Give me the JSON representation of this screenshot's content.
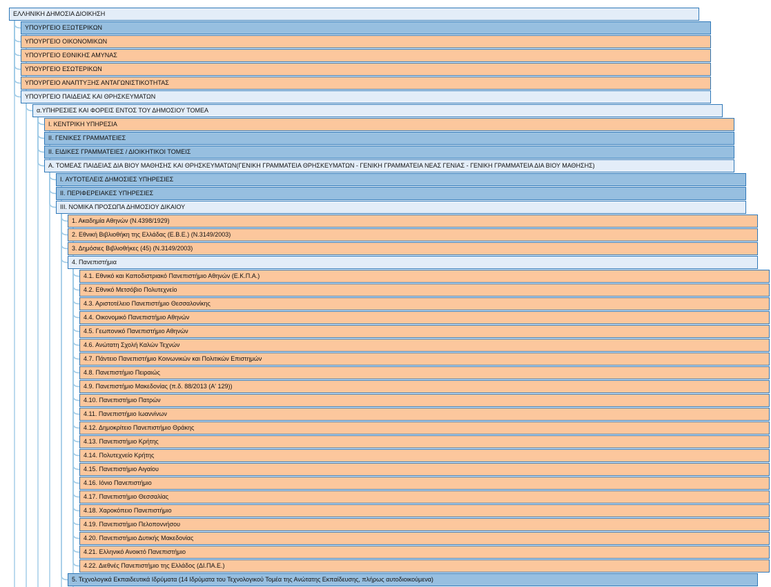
{
  "colors": {
    "light": "#e3edf8",
    "blue": "#97bfe0",
    "orange": "#fcc79d",
    "border": "#2f78b8",
    "connector": "#9ecae6"
  },
  "nodes": [
    {
      "text": "ΕΛΛΗΝΙΚΗ ΔΗΜΟΣΙΑ ΔΙΟΙΚΗΣΗ",
      "level": 0,
      "color": "light"
    },
    {
      "text": "ΥΠΟΥΡΓΕΙΟ ΕΞΩΤΕΡΙΚΩΝ",
      "level": 1,
      "color": "blue"
    },
    {
      "text": "ΥΠΟΥΡΓΕΙΟ ΟΙΚΟΝΟΜΙΚΩΝ",
      "level": 1,
      "color": "orange"
    },
    {
      "text": "ΥΠΟΥΡΓΕΙΟ ΕΘΝΙΚΗΣ ΑΜΥΝΑΣ",
      "level": 1,
      "color": "orange"
    },
    {
      "text": "ΥΠΟΥΡΓΕΙΟ ΕΣΩΤΕΡΙΚΩΝ",
      "level": 1,
      "color": "orange"
    },
    {
      "text": "ΥΠΟΥΡΓΕΙΟ ΑΝΑΠΤΥΞΗΣ ΑΝΤΑΓΩΝΙΣΤΙΚΟΤΗΤΑΣ",
      "level": 1,
      "color": "orange"
    },
    {
      "text": "ΥΠΟΥΡΓΕΙΟ ΠΑΙΔΕΙΑΣ ΚΑΙ ΘΡΗΣΚΕΥΜΑΤΩΝ",
      "level": 1,
      "color": "light"
    },
    {
      "text": "α.ΥΠΗΡΕΣΙΕΣ ΚΑΙ ΦΟΡΕΙΣ ΕΝΤΟΣ ΤΟΥ ΔΗΜΟΣΙΟΥ ΤΟΜΕΑ",
      "level": 2,
      "color": "light"
    },
    {
      "text": "I. ΚΕΝΤΡΙΚΗ ΥΠΗΡΕΣΙΑ",
      "level": 3,
      "color": "orange"
    },
    {
      "text": "II. ΓΕΝΙΚΕΣ ΓΡΑΜΜΑΤΕΙΕΣ",
      "level": 3,
      "color": "blue"
    },
    {
      "text": "II. ΕΙΔΙΚΕΣ ΓΡΑΜΜΑΤΕΙΕΣ / ΔΙΟΙΚΗΤΙΚΟΙ ΤΟΜΕΙΣ",
      "level": 3,
      "color": "blue"
    },
    {
      "text": "Α. ΤΟΜΕΑΣ ΠΑΙΔΕΙΑΣ ΔΙΑ ΒΙΟΥ ΜΑΘΗΣΗΣ ΚΑΙ ΘΡΗΣΚΕΥΜΑΤΩΝ(ΓΕΝΙΚΗ ΓΡΑΜΜΑΤΕΙΑ ΘΡΗΣΚΕΥΜΑΤΩΝ - ΓΕΝΙΚΗ ΓΡΑΜΜΑΤΕΙΑ ΝΕΑΣ ΓΕΝΙΑΣ - ΓΕΝΙΚΗ ΓΡΑΜΜΑΤΕΙΑ ΔΙΑ ΒΙΟΥ ΜΑΘΗΣΗΣ)",
      "level": 3,
      "color": "light"
    },
    {
      "text": "I. ΑΥΤΟΤΕΛΕΙΣ ΔΗΜΟΣΙΕΣ ΥΠΗΡΕΣΙΕΣ",
      "level": 4,
      "color": "blue"
    },
    {
      "text": "II. ΠΕΡΙΦΕΡΕΙΑΚΕΣ ΥΠΗΡΕΣΙΕΣ",
      "level": 4,
      "color": "blue"
    },
    {
      "text": "III. ΝΟΜΙΚΑ ΠΡΟΣΩΠΑ ΔΗΜΟΣΙΟΥ ΔΙΚΑΙΟΥ",
      "level": 4,
      "color": "light"
    },
    {
      "text": "1. Ακαδημία Αθηνών (Ν.4398/1929)",
      "level": 5,
      "color": "orange"
    },
    {
      "text": "2. Εθνική Βιβλιοθήκη της Ελλάδας (Ε.Β.Ε.) (Ν.3149/2003)",
      "level": 5,
      "color": "orange"
    },
    {
      "text": "3. Δημόσιες Βιβλιοθήκες (45) (Ν.3149/2003)",
      "level": 5,
      "color": "orange"
    },
    {
      "text": "4. Πανεπιστήμια",
      "level": 5,
      "color": "light"
    },
    {
      "text": "4.1. Εθνικό και Καποδιστριακό Πανεπιστήμιο Αθηνών (Ε.Κ.Π.Α.)",
      "level": 6,
      "color": "orange"
    },
    {
      "text": "4.2. Εθνικό Μετσόβιο Πολυτεχνείο",
      "level": 6,
      "color": "orange"
    },
    {
      "text": "4.3. Αριστοτέλειο Πανεπιστήμιο Θεσσαλονίκης",
      "level": 6,
      "color": "orange"
    },
    {
      "text": "4.4. Οικονομικό Πανεπιστήμιο Αθηνών",
      "level": 6,
      "color": "orange"
    },
    {
      "text": "4.5. Γεωπονικό Πανεπιστήμιο Αθηνών",
      "level": 6,
      "color": "orange"
    },
    {
      "text": "4.6. Ανώτατη Σχολή Καλών Τεχνών",
      "level": 6,
      "color": "orange"
    },
    {
      "text": "4.7. Πάντειο Πανεπιστήμιο Κοινωνικών και Πολιτικών Επιστημών",
      "level": 6,
      "color": "orange"
    },
    {
      "text": "4.8. Πανεπιστήμιο Πειραιώς",
      "level": 6,
      "color": "orange"
    },
    {
      "text": "4.9. Πανεπιστήμιο Μακεδονίας (π.δ. 88/2013 (Α' 129))",
      "level": 6,
      "color": "orange"
    },
    {
      "text": "4.10. Πανεπιστήμιο Πατρών",
      "level": 6,
      "color": "orange"
    },
    {
      "text": "4.11. Πανεπιστήμιο Ιωαννίνων",
      "level": 6,
      "color": "orange"
    },
    {
      "text": "4.12. Δημοκρίτειο Πανεπιστήμιο Θράκης",
      "level": 6,
      "color": "orange"
    },
    {
      "text": "4.13. Πανεπιστήμιο Κρήτης",
      "level": 6,
      "color": "orange"
    },
    {
      "text": "4.14. Πολυτεχνείο Κρήτης",
      "level": 6,
      "color": "orange"
    },
    {
      "text": "4.15. Πανεπιστήμιο Αιγαίου",
      "level": 6,
      "color": "orange"
    },
    {
      "text": "4.16. Ιόνιο Πανεπιστήμιο",
      "level": 6,
      "color": "orange"
    },
    {
      "text": "4.17. Πανεπιστήμιο Θεσσαλίας",
      "level": 6,
      "color": "orange"
    },
    {
      "text": "4.18. Χαροκόπειο Πανεπιστήμιο",
      "level": 6,
      "color": "orange"
    },
    {
      "text": "4.19. Πανεπιστήμιο Πελοποννήσου",
      "level": 6,
      "color": "orange"
    },
    {
      "text": "4.20. Πανεπιστήμιο Δυτικής Μακεδονίας",
      "level": 6,
      "color": "orange"
    },
    {
      "text": "4.21. Ελληνικό Ανοικτό Πανεπιστήμιο",
      "level": 6,
      "color": "orange"
    },
    {
      "text": "4.22. Διεθνές Πανεπιστήμιο της Ελλάδος (ΔΙ.ΠΑ.Ε.)",
      "level": 6,
      "color": "orange"
    },
    {
      "text": "5. Τεχνολογικά Εκπαιδευτικά Ιδρύματα (14 Ιδρύματα του Τεχνολογικού Τομέα της Ανώτατης Εκπαίδευσης, πλήρως αυτοδιοικούμενα)",
      "level": 5,
      "color": "blue"
    }
  ]
}
